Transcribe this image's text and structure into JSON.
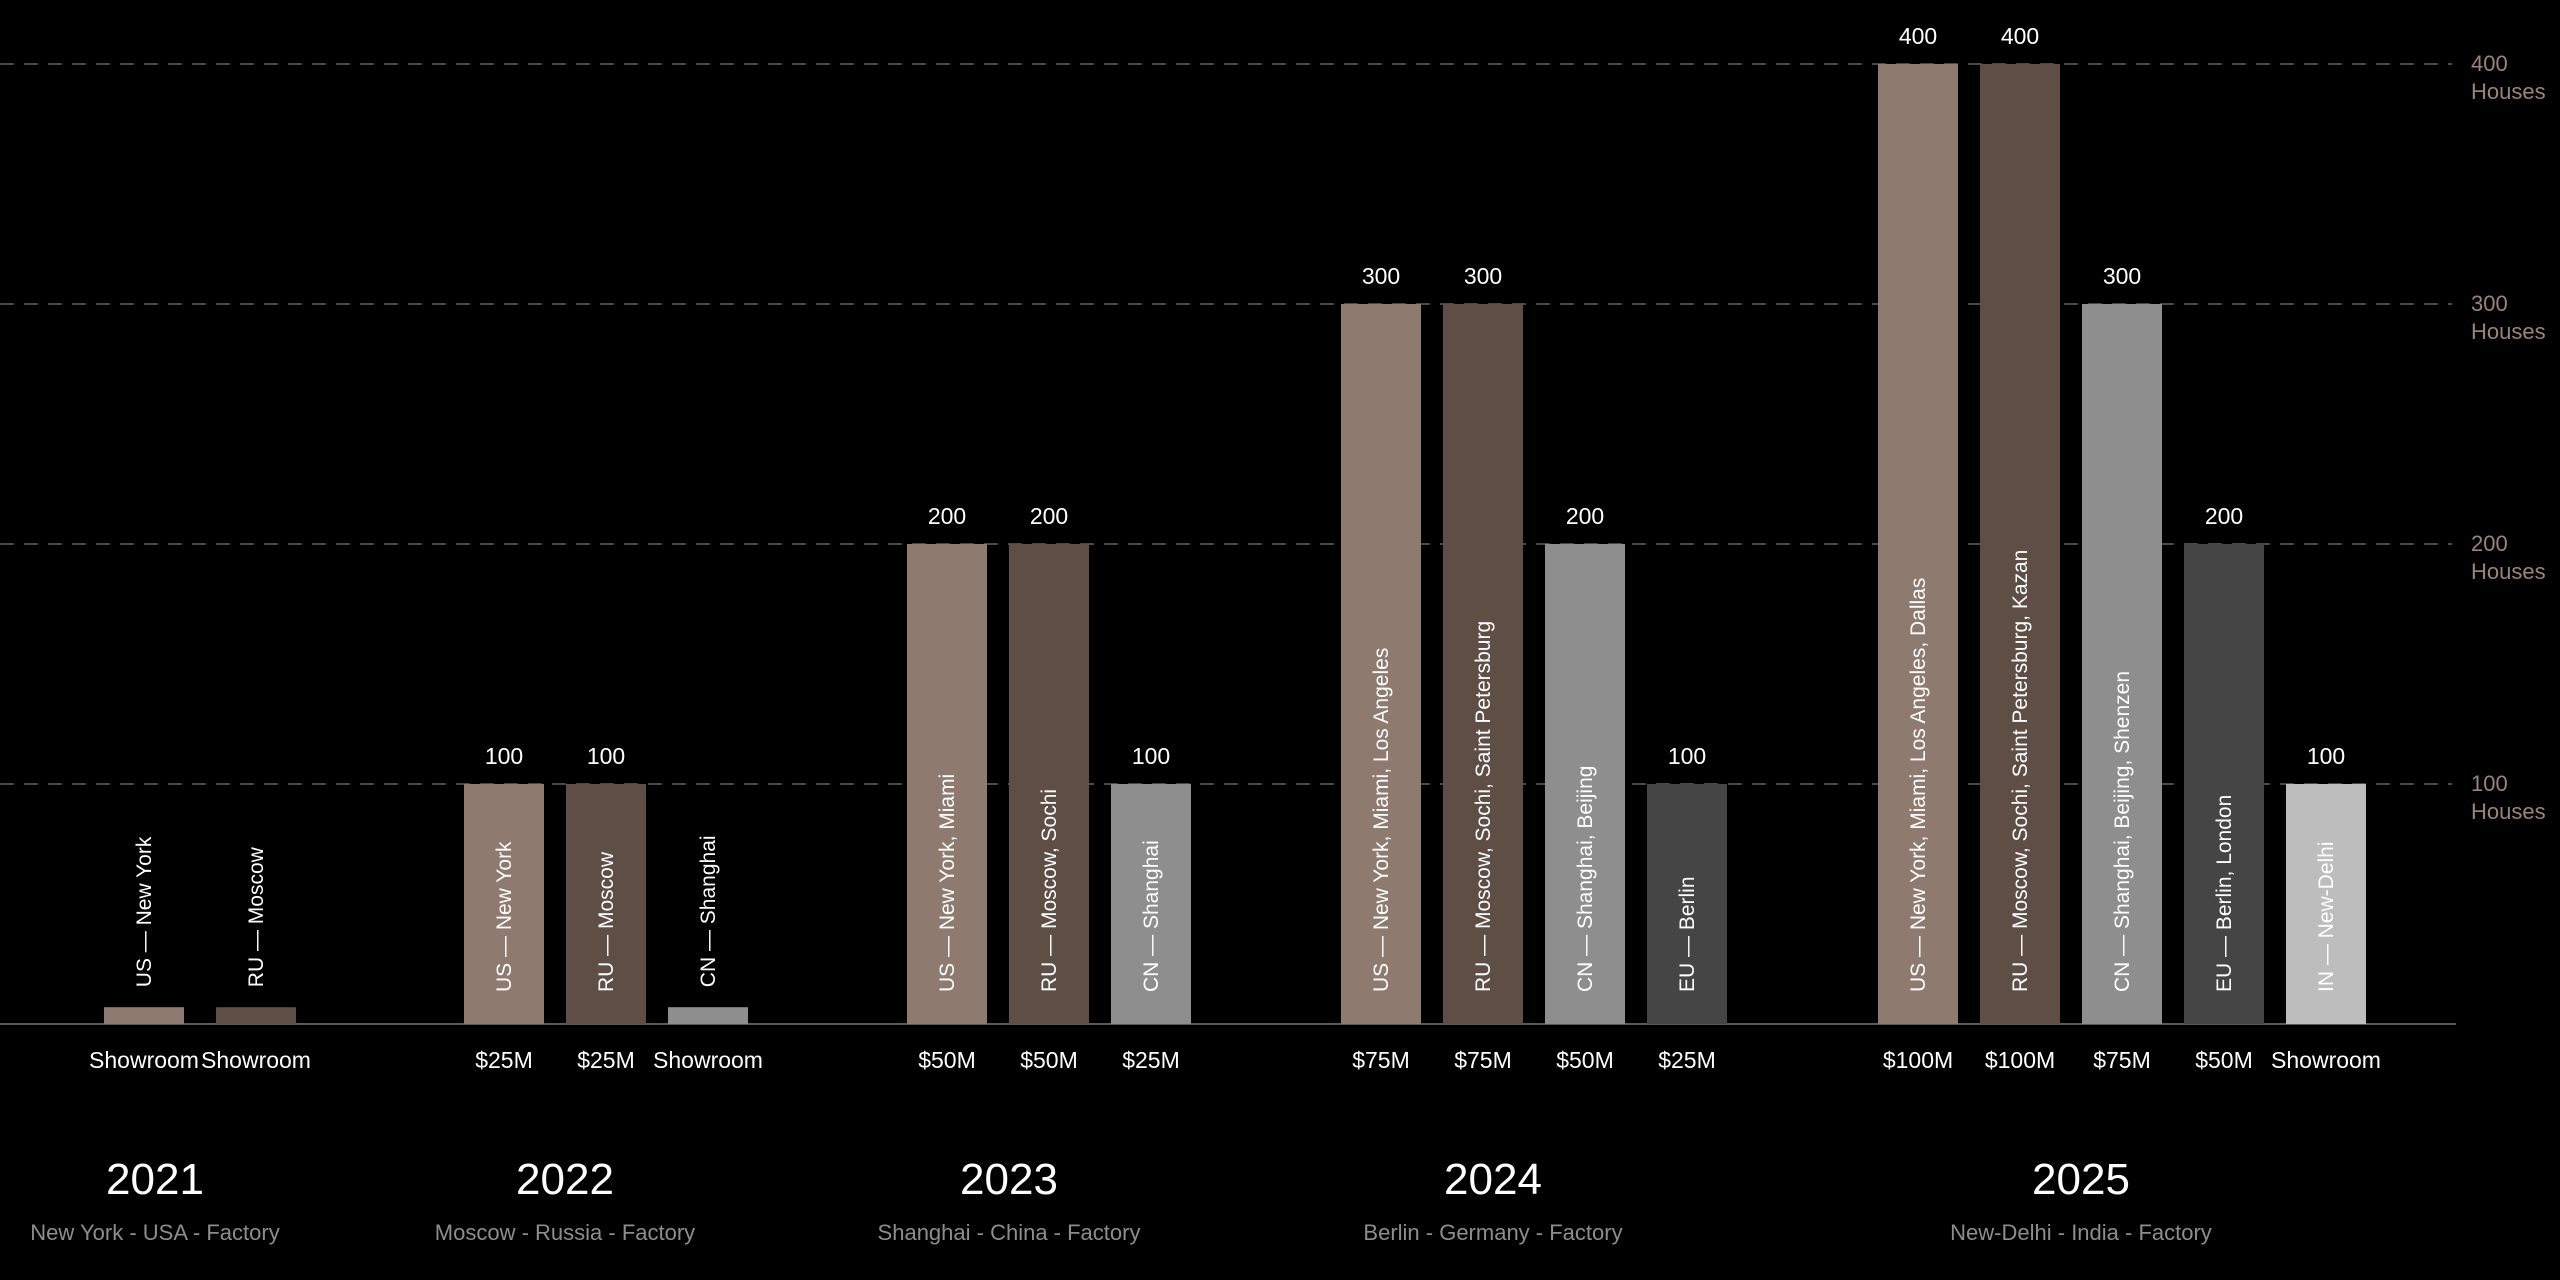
{
  "colors": {
    "US": "#8f7a70",
    "RU": "#5f4e46",
    "CN": "#8e8e8e",
    "EU": "#454545",
    "IN": "#bdbdbd"
  },
  "chart_data": {
    "type": "bar",
    "ylim": [
      0,
      400
    ],
    "y_ticks": [
      {
        "value": 100,
        "label": "100",
        "unit": "Houses"
      },
      {
        "value": 200,
        "label": "200",
        "unit": "Houses"
      },
      {
        "value": 300,
        "label": "300",
        "unit": "Houses"
      },
      {
        "value": 400,
        "label": "400",
        "unit": "Houses"
      }
    ],
    "grid": true,
    "groups": [
      {
        "year": "2021",
        "subtitle": "New York - USA - Factory",
        "bars": [
          {
            "region": "US",
            "value": 7,
            "value_label": "",
            "label": "US — New York",
            "bottom": "Showroom"
          },
          {
            "region": "RU",
            "value": 7,
            "value_label": "",
            "label": "RU — Moscow",
            "bottom": "Showroom"
          }
        ]
      },
      {
        "year": "2022",
        "subtitle": "Moscow - Russia - Factory",
        "bars": [
          {
            "region": "US",
            "value": 100,
            "value_label": "100",
            "label": "US — New York",
            "bottom": "$25M"
          },
          {
            "region": "RU",
            "value": 100,
            "value_label": "100",
            "label": "RU — Moscow",
            "bottom": "$25M"
          },
          {
            "region": "CN",
            "value": 7,
            "value_label": "",
            "label": "CN — Shanghai",
            "bottom": "Showroom"
          }
        ]
      },
      {
        "year": "2023",
        "subtitle": "Shanghai - China - Factory",
        "bars": [
          {
            "region": "US",
            "value": 200,
            "value_label": "200",
            "label": "US — New York, Miami",
            "bottom": "$50M"
          },
          {
            "region": "RU",
            "value": 200,
            "value_label": "200",
            "label": "RU — Moscow, Sochi",
            "bottom": "$50M"
          },
          {
            "region": "CN",
            "value": 100,
            "value_label": "100",
            "label": "CN — Shanghai",
            "bottom": "$25M"
          }
        ]
      },
      {
        "year": "2024",
        "subtitle": "Berlin - Germany - Factory",
        "bars": [
          {
            "region": "US",
            "value": 300,
            "value_label": "300",
            "label": "US — New York, Miami, Los Angeles",
            "bottom": "$75M"
          },
          {
            "region": "RU",
            "value": 300,
            "value_label": "300",
            "label": "RU — Moscow, Sochi, Saint Petersburg",
            "bottom": "$75M"
          },
          {
            "region": "CN",
            "value": 200,
            "value_label": "200",
            "label": "CN — Shanghai, Beijing",
            "bottom": "$50M"
          },
          {
            "region": "EU",
            "value": 100,
            "value_label": "100",
            "label": "EU — Berlin",
            "bottom": "$25M"
          }
        ]
      },
      {
        "year": "2025",
        "subtitle": "New-Delhi - India - Factory",
        "bars": [
          {
            "region": "US",
            "value": 400,
            "value_label": "400",
            "label": "US — New York, Miami, Los Angeles, Dallas",
            "bottom": "$100M"
          },
          {
            "region": "RU",
            "value": 400,
            "value_label": "400",
            "label": "RU — Moscow, Sochi, Saint Petersburg, Kazan",
            "bottom": "$100M"
          },
          {
            "region": "CN",
            "value": 300,
            "value_label": "300",
            "label": "CN — Shanghai, Beijing, Shenzen",
            "bottom": "$75M"
          },
          {
            "region": "EU",
            "value": 200,
            "value_label": "200",
            "label": "EU — Berlin, London",
            "bottom": "$50M"
          },
          {
            "region": "IN",
            "value": 100,
            "value_label": "100",
            "label": "IN — New-Delhi",
            "bottom": "Showroom"
          }
        ]
      }
    ]
  }
}
